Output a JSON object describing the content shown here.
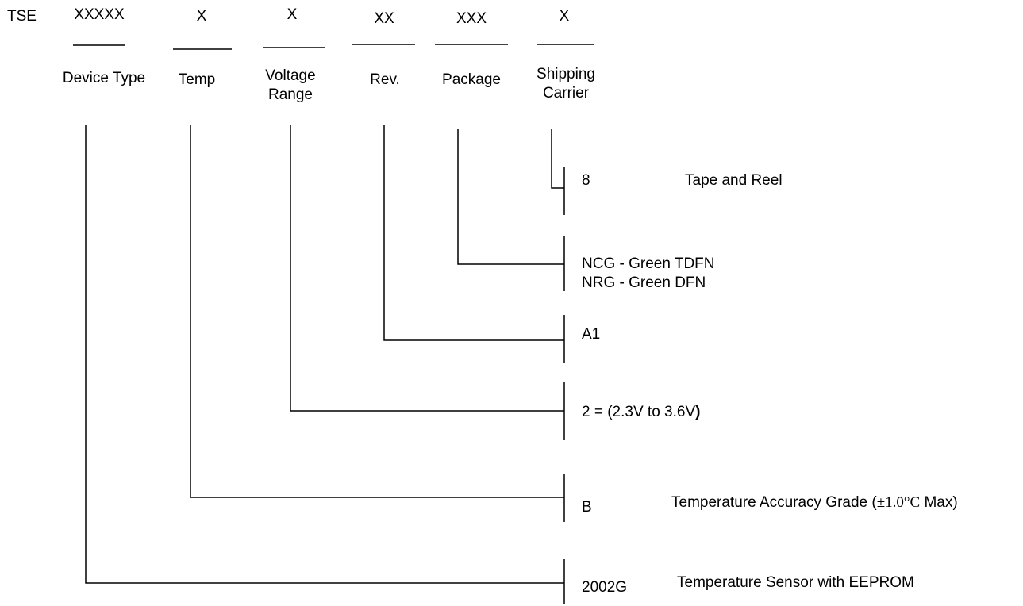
{
  "prefix": "TSE",
  "fields": [
    {
      "code": "XXXXX",
      "label": "Device Type"
    },
    {
      "code": "X",
      "label": "Temp"
    },
    {
      "code": "X",
      "label_lines": [
        "Voltage",
        "Range"
      ]
    },
    {
      "code": "XX",
      "label": "Rev."
    },
    {
      "code": "XXX",
      "label": "Package"
    },
    {
      "code": "X",
      "label_lines": [
        "Shipping",
        "Carrier"
      ]
    }
  ],
  "options": {
    "shipping": {
      "code": "8",
      "desc": "Tape and Reel"
    },
    "package": {
      "lines": [
        "NCG - Green TDFN",
        "NRG - Green DFN"
      ]
    },
    "rev": {
      "code": "A1"
    },
    "voltage": {
      "text_prefix": "2 = (2.3V to 3.6V",
      "text_suffix": ")"
    },
    "temp": {
      "code": "B",
      "desc_start": "Temperature Accuracy Grade (",
      "desc_symbol": "±1.0°C",
      "desc_end": " Max)"
    },
    "device": {
      "code": "2002G",
      "desc": "Temperature Sensor with EEPROM"
    }
  }
}
